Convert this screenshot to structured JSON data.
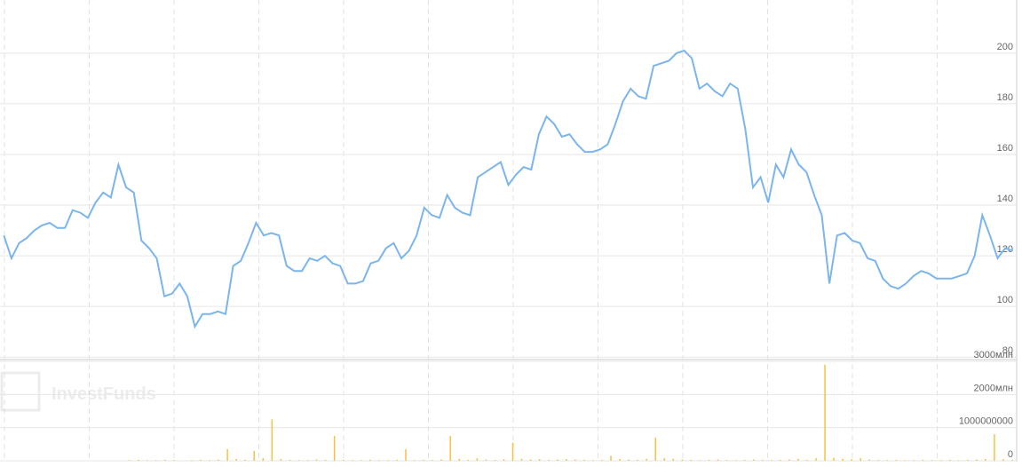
{
  "watermark": "InvestFunds",
  "chart_data": [
    {
      "type": "line",
      "color": "#7cb5ec",
      "values": [
        128,
        119,
        125,
        127,
        130,
        132,
        133,
        131,
        131,
        138,
        137,
        135,
        141,
        145,
        143,
        156,
        147,
        145,
        126,
        123,
        119,
        104,
        105,
        109,
        104,
        92,
        97,
        97,
        98,
        97,
        116,
        118,
        125,
        133,
        128,
        129,
        128,
        116,
        114,
        114,
        119,
        118,
        120,
        117,
        116,
        109,
        109,
        110,
        117,
        118,
        123,
        125,
        119,
        122,
        128,
        139,
        136,
        135,
        144,
        139,
        137,
        136,
        151,
        153,
        155,
        157,
        148,
        152,
        155,
        154,
        168,
        175,
        172,
        167,
        168,
        164,
        161,
        161,
        162,
        164,
        172,
        181,
        186,
        183,
        182,
        195,
        196,
        197,
        200,
        201,
        198,
        186,
        188,
        185,
        183,
        188,
        186,
        170,
        147,
        151,
        141,
        156,
        151,
        162,
        156,
        153,
        144,
        136,
        109,
        128,
        129,
        126,
        125,
        119,
        118,
        111,
        108,
        107,
        109,
        112,
        114,
        113,
        111,
        111,
        111,
        112,
        113,
        120,
        136,
        128,
        119,
        123,
        122
      ],
      "ylim": [
        79,
        221
      ],
      "yticks": [
        80,
        100,
        120,
        140,
        160,
        180,
        200
      ],
      "grid": true
    },
    {
      "type": "bar",
      "color": "#f7c143",
      "values": [
        0,
        0,
        0,
        0,
        0,
        0,
        0,
        0,
        0,
        0,
        0,
        0,
        0,
        0,
        20000000,
        30000000,
        20000000,
        20000000,
        30000000,
        20000000,
        0,
        20000000,
        30000000,
        20000000,
        40000000,
        350000000,
        60000000,
        30000000,
        300000000,
        80000000,
        1250000000,
        50000000,
        30000000,
        20000000,
        20000000,
        40000000,
        30000000,
        750000000,
        30000000,
        20000000,
        20000000,
        30000000,
        20000000,
        20000000,
        30000000,
        350000000,
        20000000,
        30000000,
        20000000,
        40000000,
        750000000,
        60000000,
        30000000,
        80000000,
        40000000,
        30000000,
        50000000,
        550000000,
        60000000,
        40000000,
        50000000,
        30000000,
        40000000,
        50000000,
        40000000,
        30000000,
        20000000,
        30000000,
        150000000,
        60000000,
        40000000,
        30000000,
        60000000,
        700000000,
        80000000,
        60000000,
        40000000,
        30000000,
        20000000,
        30000000,
        40000000,
        30000000,
        20000000,
        30000000,
        40000000,
        30000000,
        20000000,
        30000000,
        40000000,
        60000000,
        30000000,
        80000000,
        2900000000,
        90000000,
        60000000,
        50000000,
        80000000,
        40000000,
        30000000,
        20000000,
        30000000,
        20000000,
        20000000,
        30000000,
        20000000,
        20000000,
        30000000,
        20000000,
        30000000,
        40000000,
        60000000,
        800000000,
        50000000,
        30000000
      ],
      "ylim": [
        0,
        3000000000
      ],
      "yticks": [
        0,
        1000000000,
        {
          "value": 2000000000,
          "label": "2000млн"
        },
        {
          "value": 3000000000,
          "label": "3000млн"
        }
      ],
      "grid": true
    }
  ]
}
